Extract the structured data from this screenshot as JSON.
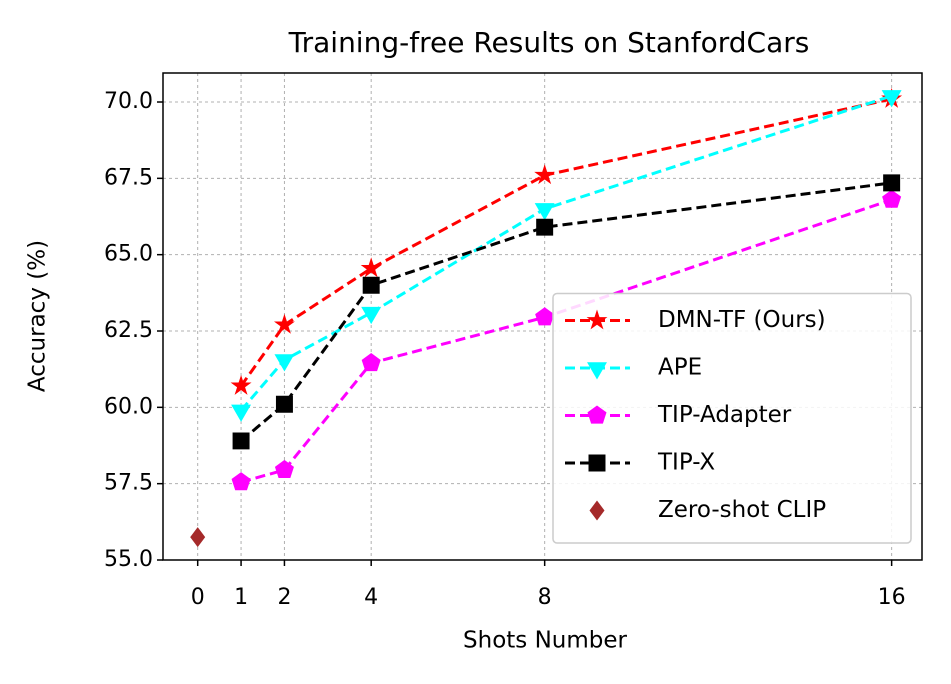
{
  "chart_data": {
    "type": "line",
    "title": "Training-free Results on StanfordCars",
    "xlabel": "Shots Number",
    "ylabel": "Accuracy (%)",
    "xlim": [
      -0.8,
      16.7
    ],
    "ylim": [
      55,
      70.95
    ],
    "xticks": [
      0,
      1,
      2,
      4,
      8,
      16
    ],
    "yticks": [
      {
        "value": 55,
        "label": "55.0"
      },
      {
        "value": 57.5,
        "label": "57.5"
      },
      {
        "value": 60,
        "label": "60.0"
      },
      {
        "value": 62.5,
        "label": "62.5"
      },
      {
        "value": 65,
        "label": "65.0"
      },
      {
        "value": 67.5,
        "label": "67.5"
      },
      {
        "value": 70,
        "label": "70.0"
      }
    ],
    "grid": true,
    "legend": "lower right",
    "series": [
      {
        "name": "DMN-TF (Ours)",
        "color": "#ff0000",
        "marker": "star",
        "linestyle": "dashed",
        "x": [
          1,
          2,
          4,
          8,
          16
        ],
        "values": [
          60.7,
          62.7,
          64.55,
          67.6,
          70.1
        ]
      },
      {
        "name": "APE",
        "color": "#00ffff",
        "marker": "triangle-down",
        "linestyle": "dashed",
        "x": [
          1,
          2,
          4,
          8,
          16
        ],
        "values": [
          59.9,
          61.55,
          63.1,
          66.5,
          70.2
        ]
      },
      {
        "name": "TIP-Adapter",
        "color": "#ff00ff",
        "marker": "pentagon",
        "linestyle": "dashed",
        "x": [
          1,
          2,
          4,
          8,
          16
        ],
        "values": [
          57.55,
          57.95,
          61.45,
          62.95,
          66.8
        ]
      },
      {
        "name": "TIP-X",
        "color": "#000000",
        "marker": "square",
        "linestyle": "dashed",
        "x": [
          1,
          2,
          4,
          8,
          16
        ],
        "values": [
          58.9,
          60.1,
          64.0,
          65.9,
          67.35
        ]
      },
      {
        "name": "Zero-shot CLIP",
        "color": "#a52a2a",
        "marker": "diamond",
        "linestyle": "none",
        "x": [
          0
        ],
        "values": [
          55.75
        ]
      }
    ]
  }
}
